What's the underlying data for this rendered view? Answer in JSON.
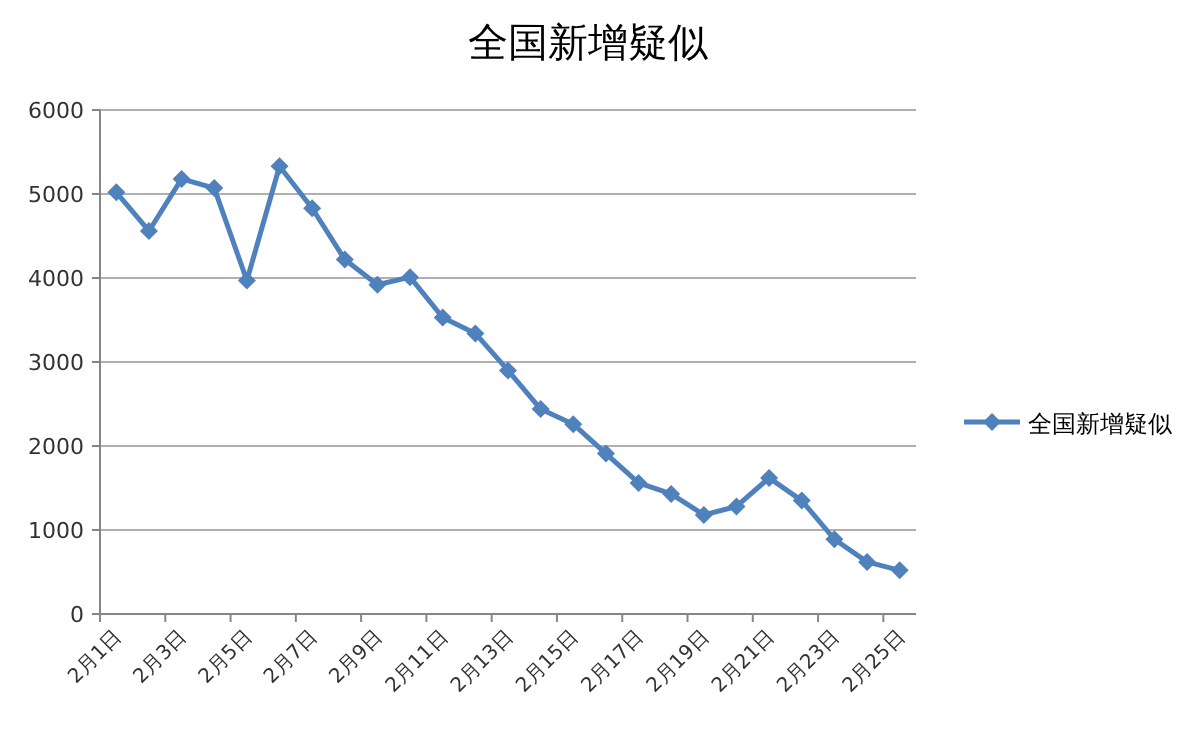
{
  "chart_data": {
    "type": "line",
    "title": "全国新增疑似",
    "categories": [
      "2月1日",
      null,
      "2月3日",
      null,
      "2月5日",
      null,
      "2月7日",
      null,
      "2月9日",
      null,
      "2月11日",
      null,
      "2月13日",
      null,
      "2月15日",
      null,
      "2月17日",
      null,
      "2月19日",
      null,
      "2月21日",
      null,
      "2月23日",
      null,
      "2月25日"
    ],
    "series": [
      {
        "name": "全国新增疑似",
        "color": "#4f81bd",
        "values": [
          5020,
          4560,
          5180,
          5070,
          3970,
          5330,
          4830,
          4220,
          3920,
          4010,
          3530,
          3340,
          2900,
          2440,
          2260,
          1910,
          1560,
          1430,
          1180,
          1280,
          1620,
          1350,
          890,
          620,
          520
        ]
      }
    ],
    "ylim": [
      0,
      6000
    ],
    "yticks": [
      0,
      1000,
      2000,
      3000,
      4000,
      5000,
      6000
    ],
    "grid": "y",
    "legend": "right",
    "marker": "diamond",
    "line_style": "solid"
  }
}
